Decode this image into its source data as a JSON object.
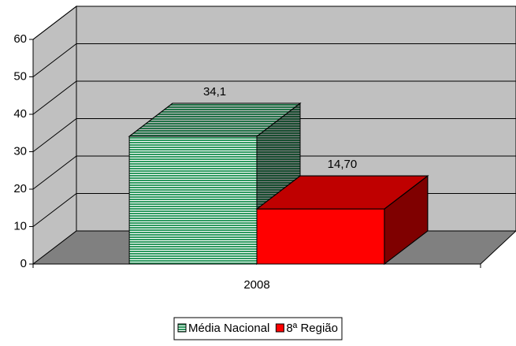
{
  "chart_data": {
    "type": "bar3d",
    "categories": [
      "2008"
    ],
    "series": [
      {
        "name": "Média Nacional",
        "color": "#2e9a60",
        "pattern": "horizontal-stripes",
        "values": [
          34.1
        ],
        "value_labels": [
          "34,1"
        ]
      },
      {
        "name": "8ª Região",
        "color": "#ff0000",
        "values": [
          14.7
        ],
        "value_labels": [
          "14,70"
        ]
      }
    ],
    "ylim": [
      0,
      60
    ],
    "yticks": [
      0,
      10,
      20,
      30,
      40,
      50,
      60
    ],
    "grid": true,
    "legend": "bottom"
  }
}
